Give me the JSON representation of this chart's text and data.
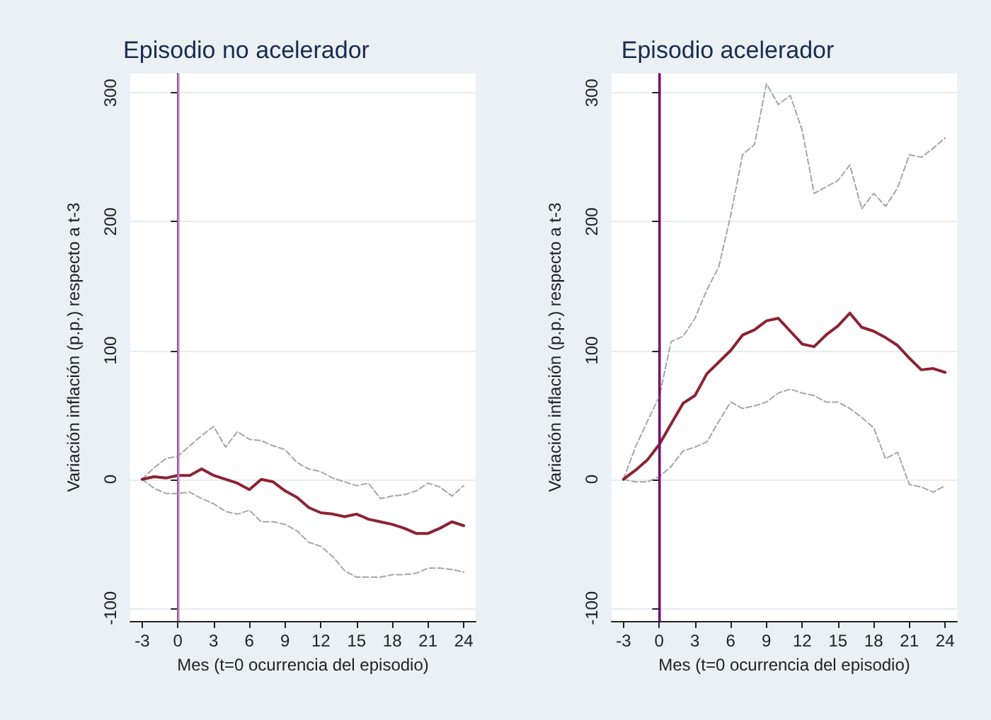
{
  "chart_data": [
    {
      "type": "line",
      "title": "Episodio no acelerador",
      "xlabel": "Mes (t=0 ocurrencia del episodio)",
      "ylabel": "Variación inflación (p.p.) respecto a t-3",
      "x": [
        -3,
        -2,
        -1,
        0,
        1,
        2,
        3,
        4,
        5,
        6,
        7,
        8,
        9,
        10,
        11,
        12,
        13,
        14,
        15,
        16,
        17,
        18,
        19,
        20,
        21,
        22,
        23,
        24
      ],
      "series": [
        {
          "color": "#8c2332",
          "line_style": "solid",
          "values": [
            0,
            2,
            1,
            3,
            3,
            8,
            3,
            0,
            -3,
            -8,
            0,
            -2,
            -9,
            -14,
            -22,
            -26,
            -27,
            -29,
            -27,
            -31,
            -33,
            -35,
            -38,
            -42,
            -42,
            -38,
            -33,
            -36
          ]
        },
        {
          "color": "#a6a6a6",
          "line_style": "dashed",
          "values": [
            0,
            9,
            16,
            18,
            26,
            34,
            41,
            25,
            37,
            31,
            30,
            26,
            23,
            13,
            8,
            6,
            1,
            -2,
            -5,
            -3,
            -15,
            -13,
            -12,
            -9,
            -3,
            -6,
            -13,
            -5
          ]
        },
        {
          "color": "#a6a6a6",
          "line_style": "dashed",
          "values": [
            0,
            -7,
            -11,
            -11,
            -10,
            -15,
            -19,
            -25,
            -27,
            -24,
            -33,
            -33,
            -35,
            -40,
            -49,
            -52,
            -60,
            -71,
            -76,
            -76,
            -76,
            -74,
            -74,
            -73,
            -69,
            -69,
            -70,
            -72
          ]
        }
      ],
      "xlim": [
        -4,
        25
      ],
      "xticks": [
        -3,
        0,
        3,
        6,
        9,
        12,
        15,
        18,
        21,
        24
      ],
      "ylim": [
        -110,
        315
      ],
      "yticks": [
        -100,
        0,
        100,
        200,
        300
      ],
      "ref_lines": [
        {
          "axis": "x",
          "value": 0,
          "color": "#c07cc0"
        }
      ],
      "grid": "y",
      "marker": "none"
    },
    {
      "type": "line",
      "title": "Episodio acelerador",
      "xlabel": "Mes (t=0 ocurrencia del episodio)",
      "ylabel": "Variación inflación (p.p.) respecto a t-3",
      "x": [
        -3,
        -2,
        -1,
        0,
        1,
        2,
        3,
        4,
        5,
        6,
        7,
        8,
        9,
        10,
        11,
        12,
        13,
        14,
        15,
        16,
        17,
        18,
        19,
        20,
        21,
        22,
        23,
        24
      ],
      "series": [
        {
          "color": "#8c2332",
          "line_style": "solid",
          "values": [
            0,
            7,
            15,
            27,
            43,
            59,
            65,
            82,
            91,
            100,
            112,
            116,
            123,
            125,
            115,
            105,
            103,
            112,
            119,
            129,
            118,
            115,
            110,
            104,
            94,
            85,
            86,
            83
          ]
        },
        {
          "color": "#a6a6a6",
          "line_style": "dashed",
          "values": [
            0,
            25,
            45,
            64,
            107,
            111,
            125,
            147,
            165,
            205,
            252,
            260,
            307,
            291,
            298,
            271,
            222,
            227,
            232,
            244,
            210,
            222,
            212,
            226,
            252,
            250,
            257,
            265
          ]
        },
        {
          "color": "#a6a6a6",
          "line_style": "dashed",
          "values": [
            0,
            -2,
            -2,
            2,
            10,
            22,
            25,
            29,
            45,
            60,
            55,
            57,
            60,
            67,
            70,
            67,
            65,
            60,
            60,
            55,
            48,
            40,
            16,
            21,
            -4,
            -6,
            -10,
            -5
          ]
        }
      ],
      "xlim": [
        -4,
        25
      ],
      "xticks": [
        -3,
        0,
        3,
        6,
        9,
        12,
        15,
        18,
        21,
        24
      ],
      "ylim": [
        -110,
        315
      ],
      "yticks": [
        -100,
        0,
        100,
        200,
        300
      ],
      "ref_lines": [
        {
          "axis": "x",
          "value": 0,
          "color": "#800080"
        }
      ],
      "grid": "y",
      "marker": "none"
    }
  ]
}
